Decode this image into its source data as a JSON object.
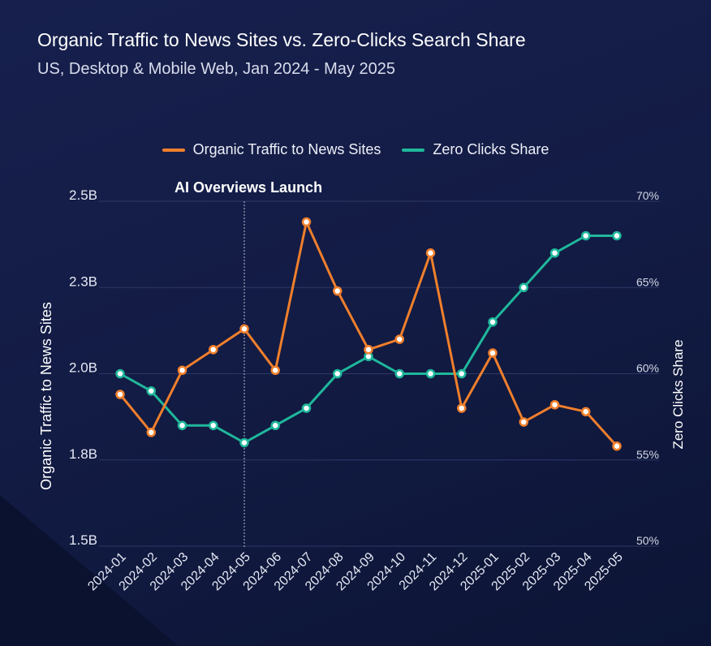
{
  "title": "Organic Traffic to News Sites vs. Zero-Clicks Search Share",
  "subtitle": "US, Desktop & Mobile Web, Jan 2024 - May 2025",
  "colors": {
    "organic": "#f07f2c",
    "zero": "#1fb89c",
    "grid": "#2c3866",
    "text": "#ffffff"
  },
  "chart_data": {
    "type": "line",
    "categories": [
      "2024-01",
      "2024-02",
      "2024-03",
      "2024-04",
      "2024-05",
      "2024-06",
      "2024-07",
      "2024-08",
      "2024-09",
      "2024-10",
      "2024-11",
      "2024-12",
      "2025-01",
      "2025-02",
      "2025-03",
      "2025-04",
      "2025-05"
    ],
    "series": [
      {
        "name": "Organic Traffic to News Sites",
        "axis": "left",
        "values": [
          1.94,
          1.83,
          2.01,
          2.07,
          2.13,
          2.01,
          2.44,
          2.24,
          2.07,
          2.1,
          2.35,
          1.9,
          2.06,
          1.86,
          1.91,
          1.89,
          1.79
        ]
      },
      {
        "name": "Zero Clicks Share",
        "axis": "right",
        "values": [
          60,
          59,
          57,
          57,
          56,
          57,
          58,
          60,
          61,
          60,
          60,
          60,
          63,
          65,
          67,
          68,
          68
        ]
      }
    ],
    "left_axis": {
      "label": "Organic Traffic to News Sites",
      "ticks": [
        "2.5B",
        "2.3B",
        "2.0B",
        "1.8B",
        "1.5B"
      ],
      "range": [
        1.5,
        2.5
      ]
    },
    "right_axis": {
      "label": "Zero Clicks Share",
      "ticks": [
        "70%",
        "65%",
        "60%",
        "55%",
        "50%"
      ],
      "range": [
        50,
        70
      ]
    },
    "annotation": {
      "label": "AI Overviews Launch",
      "at": "2024-05"
    },
    "grid": true,
    "legend_position": "top-center"
  }
}
